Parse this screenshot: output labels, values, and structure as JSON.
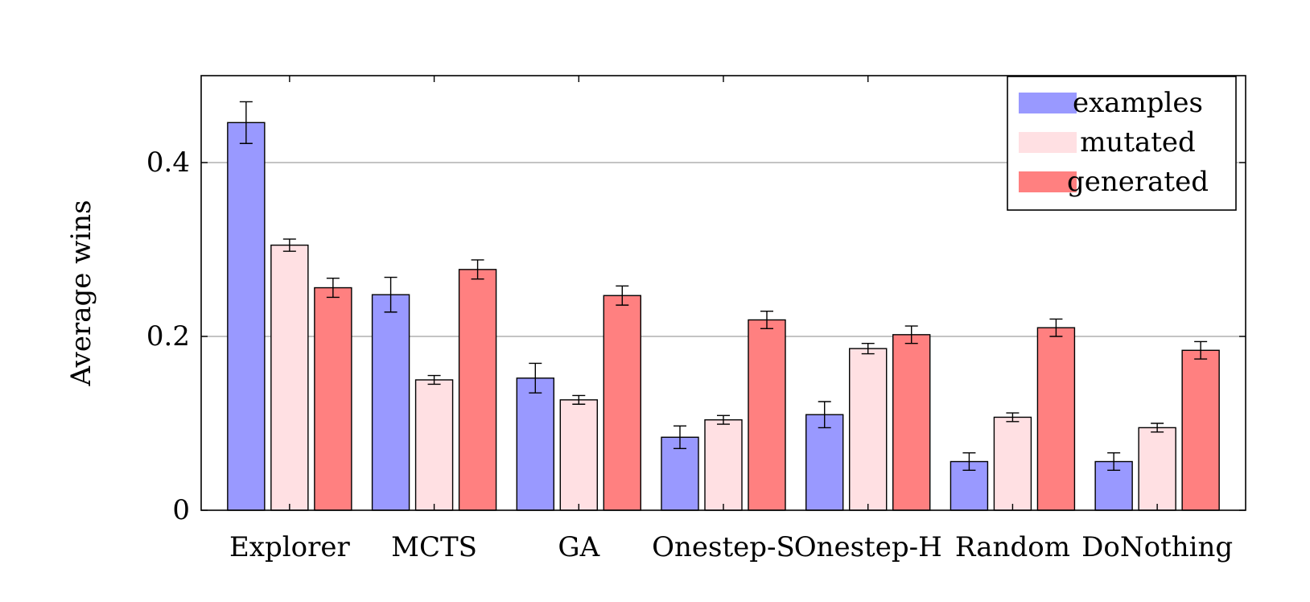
{
  "chart_data": {
    "type": "bar",
    "title": "",
    "xlabel": "",
    "ylabel": "Average wins",
    "ylim": [
      0,
      0.5
    ],
    "yticks": [
      0,
      0.2,
      0.4
    ],
    "ytick_labels": [
      "0",
      "0.2",
      "0.4"
    ],
    "grid": "horizontal",
    "legend_position": "top-right",
    "categories": [
      "Explorer",
      "MCTS",
      "GA",
      "Onestep-S",
      "Onestep-H",
      "Random",
      "DoNothing"
    ],
    "series": [
      {
        "name": "examples",
        "color": "#9999ff",
        "values": [
          0.446,
          0.248,
          0.152,
          0.084,
          0.11,
          0.056,
          0.056
        ],
        "errors": [
          0.024,
          0.02,
          0.017,
          0.013,
          0.015,
          0.01,
          0.01
        ]
      },
      {
        "name": "mutated",
        "color": "#ffe0e3",
        "values": [
          0.305,
          0.15,
          0.127,
          0.104,
          0.186,
          0.107,
          0.095
        ],
        "errors": [
          0.007,
          0.005,
          0.005,
          0.005,
          0.006,
          0.005,
          0.005
        ]
      },
      {
        "name": "generated",
        "color": "#ff8080",
        "values": [
          0.256,
          0.277,
          0.247,
          0.219,
          0.202,
          0.21,
          0.184
        ],
        "errors": [
          0.011,
          0.011,
          0.011,
          0.01,
          0.01,
          0.01,
          0.01
        ]
      }
    ]
  }
}
